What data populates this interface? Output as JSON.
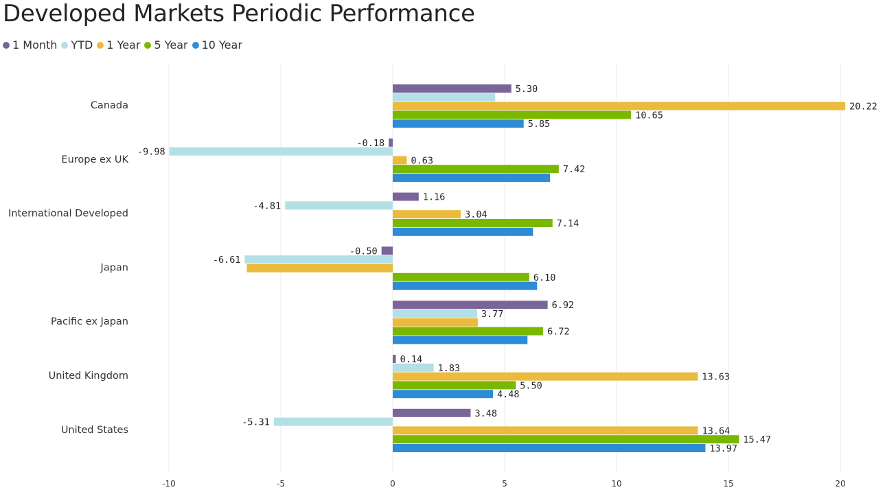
{
  "chart_data": {
    "type": "bar",
    "orientation": "horizontal",
    "title": "Developed Markets Periodic Performance",
    "categories": [
      "Canada",
      "Europe ex UK",
      "International Developed",
      "Japan",
      "Pacific ex Japan",
      "United Kingdom",
      "United States"
    ],
    "series": [
      {
        "name": "1 Month",
        "color": "#7a6599",
        "values": [
          5.3,
          -0.18,
          1.16,
          -0.5,
          6.92,
          0.14,
          3.48
        ],
        "labels": [
          "5.30",
          "-0.18",
          "1.16",
          "-0.50",
          "6.92",
          "0.14",
          "3.48"
        ]
      },
      {
        "name": "YTD",
        "color": "#b3e0e6",
        "values": [
          4.58,
          -9.98,
          -4.81,
          -6.61,
          3.77,
          1.83,
          -5.31
        ],
        "labels": [
          "",
          "-9.98",
          "-4.81",
          "-6.61",
          "3.77",
          "1.83",
          "-5.31"
        ]
      },
      {
        "name": "1 Year",
        "color": "#eabb3d",
        "values": [
          20.22,
          0.63,
          3.04,
          -6.52,
          3.8,
          13.63,
          13.64
        ],
        "labels": [
          "20.22",
          "0.63",
          "3.04",
          "",
          "",
          "13.63",
          "13.64"
        ]
      },
      {
        "name": "5 Year",
        "color": "#7ab800",
        "values": [
          10.65,
          7.42,
          7.14,
          6.1,
          6.72,
          5.5,
          15.47
        ],
        "labels": [
          "10.65",
          "7.42",
          "7.14",
          "6.10",
          "6.72",
          "5.50",
          "15.47"
        ]
      },
      {
        "name": "10 Year",
        "color": "#2e8bd6",
        "values": [
          5.85,
          7.03,
          6.27,
          6.45,
          6.02,
          4.48,
          13.97
        ],
        "labels": [
          "5.85",
          "",
          "",
          "",
          "",
          "4.48",
          "13.97"
        ]
      }
    ],
    "xlim": [
      -10,
      20
    ],
    "xticks": [
      -10,
      -5,
      0,
      5,
      10,
      15,
      20
    ],
    "grid": true,
    "legend": "top-left"
  }
}
